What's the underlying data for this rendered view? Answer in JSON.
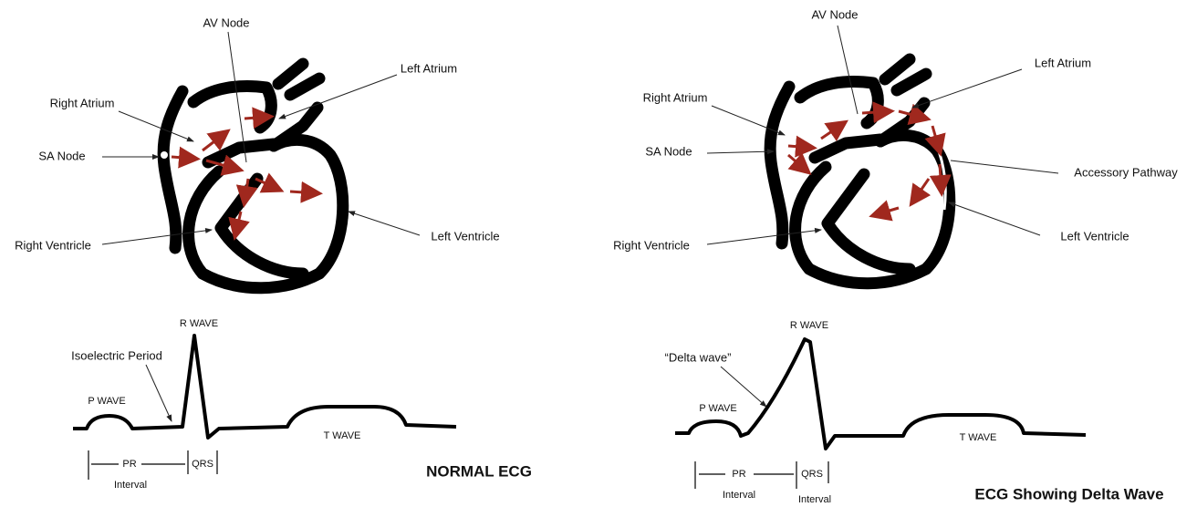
{
  "normal": {
    "heart": {
      "av_node": "AV Node",
      "left_atrium": "Left Atrium",
      "right_atrium": "Right Atrium",
      "sa_node": "SA Node",
      "right_ventricle": "Right Ventricle",
      "left_ventricle": "Left Ventricle"
    },
    "ecg": {
      "r_wave": "R WAVE",
      "annotation": "Isoelectric Period",
      "p_wave": "P WAVE",
      "t_wave": "T WAVE",
      "pr": "PR",
      "pr_interval": "Interval",
      "qrs": "QRS"
    },
    "caption": "NORMAL ECG"
  },
  "delta": {
    "heart": {
      "av_node": "AV Node",
      "left_atrium": "Left Atrium",
      "right_atrium": "Right Atrium",
      "sa_node": "SA Node",
      "accessory_pathway": "Accessory Pathway",
      "right_ventricle": "Right Ventricle",
      "left_ventricle": "Left Ventricle"
    },
    "ecg": {
      "r_wave": "R WAVE",
      "annotation": "“Delta wave”",
      "p_wave": "P WAVE",
      "t_wave": "T WAVE",
      "pr": "PR",
      "pr_interval": "Interval",
      "qrs": "QRS",
      "qrs_interval": "Interval"
    },
    "caption": "ECG Showing Delta Wave"
  }
}
